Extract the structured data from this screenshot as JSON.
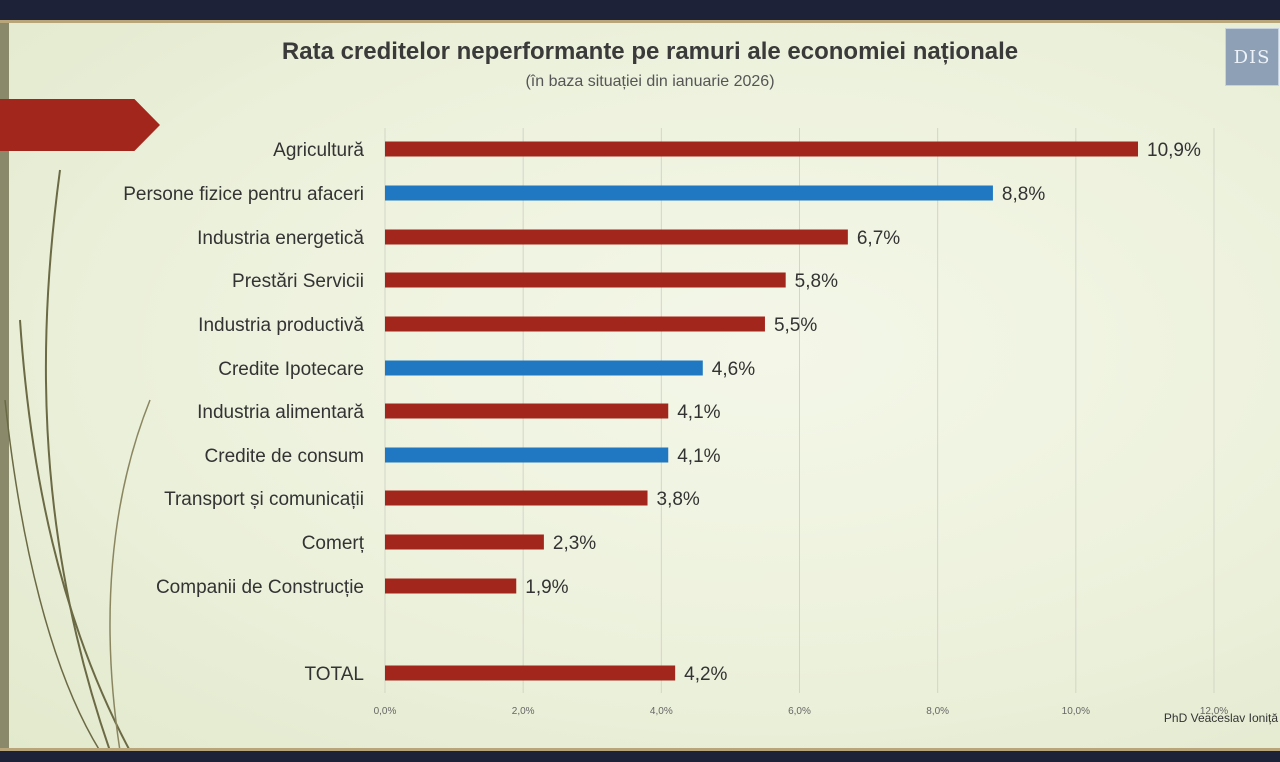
{
  "title": "Rata creditelor neperformante pe ramuri ale economiei naționale",
  "subtitle": "(în baza situației din ianuarie 2026)",
  "author": "PhD Veaceslav Ioniță",
  "logo_text": "DIS",
  "colors": {
    "sector": "#a3261c",
    "household": "#1f78c1",
    "banner": "#a3261c"
  },
  "chart_data": {
    "type": "bar",
    "orientation": "horizontal",
    "title": "Rata creditelor neperformante pe ramuri ale economiei naționale",
    "subtitle": "(în baza situației din ianuarie 2026)",
    "xlabel": "",
    "ylabel": "",
    "xlim": [
      0,
      12
    ],
    "ticks": [
      0,
      2,
      4,
      6,
      8,
      10,
      12
    ],
    "tick_labels": [
      "0,0%",
      "2,0%",
      "4,0%",
      "6,0%",
      "8,0%",
      "10,0%",
      "12,0%"
    ],
    "grid": true,
    "legend": "none",
    "categories": [
      "Agricultură",
      "Persone fizice pentru afaceri",
      "Industria energetică",
      "Prestări Servicii",
      "Industria productivă",
      "Credite Ipotecare",
      "Industria alimentară",
      "Credite de consum",
      "Transport și comunicații",
      "Comerț",
      "Companii de Construcție",
      "TOTAL"
    ],
    "values": [
      10.9,
      8.8,
      6.7,
      5.8,
      5.5,
      4.6,
      4.1,
      4.1,
      3.8,
      2.3,
      1.9,
      4.2
    ],
    "value_labels": [
      "10,9%",
      "8,8%",
      "6,7%",
      "5,8%",
      "5,5%",
      "4,6%",
      "4,1%",
      "4,1%",
      "3,8%",
      "2,3%",
      "1,9%",
      "4,2%"
    ],
    "bar_colors": [
      "#a3261c",
      "#1f78c1",
      "#a3261c",
      "#a3261c",
      "#a3261c",
      "#1f78c1",
      "#a3261c",
      "#1f78c1",
      "#a3261c",
      "#a3261c",
      "#a3261c",
      "#a3261c"
    ]
  }
}
